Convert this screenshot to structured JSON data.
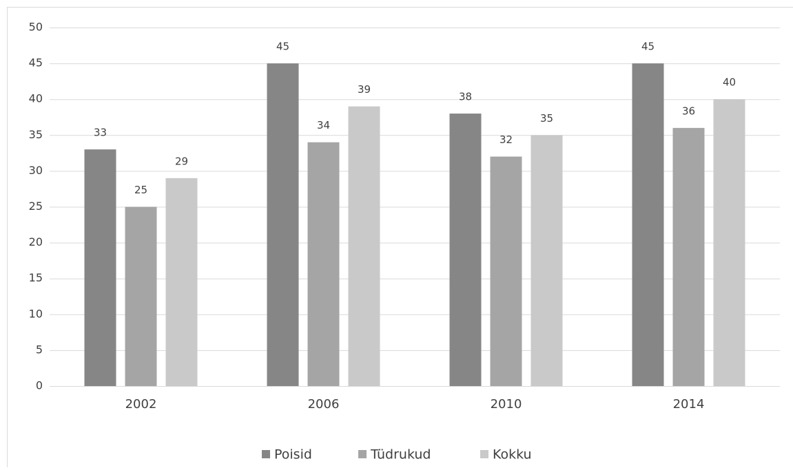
{
  "chart_data": {
    "type": "bar",
    "categories": [
      "2002",
      "2006",
      "2010",
      "2014"
    ],
    "series": [
      {
        "name": "Poisid",
        "color": "#868686",
        "values": [
          33,
          45,
          38,
          45
        ]
      },
      {
        "name": "Tüdrukud",
        "color": "#a5a5a5",
        "values": [
          25,
          34,
          32,
          36
        ]
      },
      {
        "name": "Kokku",
        "color": "#c9c9c9",
        "values": [
          29,
          39,
          35,
          40
        ]
      }
    ],
    "ylim": [
      0,
      50
    ],
    "yticks": [
      0,
      5,
      10,
      15,
      20,
      25,
      30,
      35,
      40,
      45,
      50
    ],
    "grid": true,
    "legend": "bottom",
    "data_labels": true
  }
}
